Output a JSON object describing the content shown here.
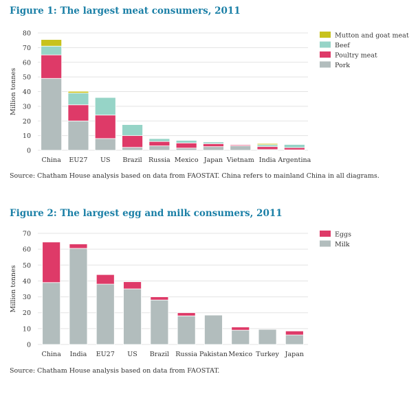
{
  "figures": [
    {
      "title": "Figure 1: The largest meat consumers, 2011",
      "source": "Source: Chatham House analysis based on data from FAOSTAT. China refers to mainland China in all diagrams.",
      "chart_data": {
        "type": "bar",
        "stacked": true,
        "ylabel": "Million tonnes",
        "ylim": [
          0,
          80
        ],
        "yticks": [
          0,
          10,
          20,
          30,
          40,
          50,
          60,
          70,
          80
        ],
        "grid": true,
        "legend_position": "top-right",
        "categories": [
          "China",
          "EU27",
          "US",
          "Brazil",
          "Russia",
          "Mexico",
          "Japan",
          "Vietnam",
          "India",
          "Argentina"
        ],
        "series": [
          {
            "name": "Pork",
            "color": "#b2bdbd",
            "values": [
              49,
              20,
              8,
              2,
              3,
              1.5,
              2.5,
              3,
              0.5,
              0.3
            ]
          },
          {
            "name": "Poultry meat",
            "color": "#de3a68",
            "values": [
              16,
              11,
              16,
              8,
              3,
              3.5,
              2,
              0.7,
              2,
              1.5
            ]
          },
          {
            "name": "Beef",
            "color": "#96d4c7",
            "values": [
              6,
              8,
              12,
              7.5,
              2,
              1.8,
              1.2,
              0.3,
              1.3,
              2.2
            ]
          },
          {
            "name": "Mutton and goat meat",
            "color": "#c8c21c",
            "values": [
              4.5,
              1.2,
              0.1,
              0.2,
              0.2,
              0.1,
              0.05,
              0.05,
              0.8,
              0.05
            ]
          }
        ]
      }
    },
    {
      "title": "Figure 2: The largest egg and milk consumers, 2011",
      "source": "Source: Chatham House analysis based on data from FAOSTAT.",
      "chart_data": {
        "type": "bar",
        "stacked": true,
        "ylabel": "Million tonnes",
        "ylim": [
          0,
          70
        ],
        "yticks": [
          0,
          10,
          20,
          30,
          40,
          50,
          60,
          70
        ],
        "grid": true,
        "legend_position": "top-right",
        "categories": [
          "China",
          "India",
          "EU27",
          "US",
          "Brazil",
          "Russia",
          "Pakistan",
          "Mexico",
          "Turkey",
          "Japan"
        ],
        "series": [
          {
            "name": "Milk",
            "color": "#b2bdbd",
            "values": [
              39,
              60.5,
              38,
              35,
              28,
              18,
              18.5,
              9,
              9.5,
              6
            ]
          },
          {
            "name": "Eggs",
            "color": "#de3a68",
            "values": [
              25.5,
              2.8,
              6,
              4.5,
              2,
              2,
              0,
              2,
              0,
              2.5
            ]
          }
        ]
      }
    }
  ]
}
